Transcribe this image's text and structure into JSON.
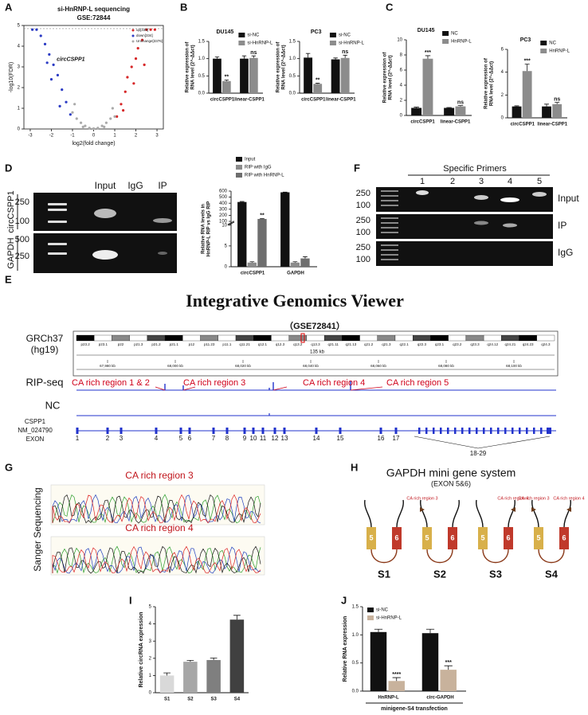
{
  "panel_labels": [
    "A",
    "B",
    "C",
    "D",
    "E",
    "F",
    "G",
    "H",
    "I",
    "J"
  ],
  "chart_data": [
    {
      "type": "scatter",
      "title": "si-HnRNP-L sequencing",
      "subtitle": "GSE:72844",
      "x_label": "log2(fold change)",
      "y_label": "-log10(FDR)",
      "xlim": [
        -3.3,
        3.3
      ],
      "ylim": [
        0,
        5
      ],
      "xticks": [
        -3,
        -2,
        -1,
        0,
        1,
        2,
        3
      ],
      "yticks": [
        0,
        1,
        2,
        3,
        4,
        5
      ],
      "legend": "top-right",
      "annotation": "circCSPP1",
      "series": [
        {
          "name": "up[339]",
          "color": "#d62728",
          "x": [
            1.1,
            1.3,
            1.5,
            1.6,
            1.8,
            2.0,
            2.1,
            2.3,
            2.5,
            2.7,
            2.9,
            1.9,
            2.4,
            1.4
          ],
          "y": [
            0.6,
            1.2,
            1.8,
            2.5,
            3.0,
            3.4,
            3.9,
            4.3,
            4.8,
            4.8,
            4.8,
            2.2,
            3.1,
            0.9
          ]
        },
        {
          "name": "down[334]",
          "color": "#2b3bc4",
          "x": [
            -1.1,
            -1.3,
            -1.5,
            -1.7,
            -1.9,
            -2.1,
            -2.3,
            -2.5,
            -2.7,
            -2.9,
            -1.6,
            -2.0,
            -2.2
          ],
          "y": [
            0.7,
            1.3,
            1.9,
            2.6,
            3.1,
            3.6,
            4.1,
            4.5,
            4.8,
            4.8,
            1.1,
            2.4,
            3.2
          ]
        },
        {
          "name": "Unchange[3376]",
          "color": "#aaaaaa",
          "x": [
            -1.0,
            -0.8,
            -0.6,
            -0.4,
            -0.2,
            0,
            0.2,
            0.4,
            0.6,
            0.8,
            1.0,
            -0.5,
            0.5,
            -0.9,
            0.9
          ],
          "y": [
            0.8,
            0.5,
            0.3,
            0.15,
            0.05,
            0.02,
            0.05,
            0.15,
            0.3,
            0.5,
            0.6,
            0.1,
            0.1,
            1.2,
            1.0
          ]
        }
      ]
    },
    {
      "type": "bar",
      "title": "DU145",
      "y_label": [
        "Relative expression of",
        "RNA level (2^-ΔΔct)"
      ],
      "categories": [
        "circCSPP1",
        "linear-CSPP1"
      ],
      "ylim": [
        0,
        1.5
      ],
      "yticks": [
        {
          "value": 0,
          "label": "0.0"
        },
        {
          "value": 0.5,
          "label": "0.5"
        },
        {
          "value": 1,
          "label": "1.0"
        },
        {
          "value": 1.5,
          "label": "1.5"
        }
      ],
      "legend": "top-right",
      "series": [
        {
          "name": "si-NC",
          "color": "#111111",
          "values": [
            1.0,
            1.0
          ],
          "errors": [
            0.05,
            0.08
          ]
        },
        {
          "name": "si-HnRNP-L",
          "color": "#8c8c8c",
          "values": [
            0.35,
            1.02
          ],
          "errors": [
            0.03,
            0.06
          ],
          "significance": [
            "**",
            "ns"
          ]
        }
      ]
    },
    {
      "type": "bar",
      "title": "PC3",
      "y_label": [
        "Relative expression of",
        "RNA level (2^-ΔΔct)"
      ],
      "categories": [
        "circCSPP1",
        "linear-CSPP1"
      ],
      "ylim": [
        0,
        1.5
      ],
      "yticks": [
        {
          "value": 0,
          "label": "0.0"
        },
        {
          "value": 0.5,
          "label": "0.5"
        },
        {
          "value": 1,
          "label": "1.0"
        },
        {
          "value": 1.5,
          "label": "1.5"
        }
      ],
      "legend": "top-right",
      "series": [
        {
          "name": "si-NC",
          "color": "#111111",
          "values": [
            1.03,
            0.98
          ],
          "errors": [
            0.12,
            0.04
          ]
        },
        {
          "name": "si-HnRNP-L",
          "color": "#8c8c8c",
          "values": [
            0.27,
            1.02
          ],
          "errors": [
            0.02,
            0.08
          ],
          "significance": [
            "**",
            "ns"
          ]
        }
      ]
    },
    {
      "type": "bar",
      "title": "DU145",
      "y_label": [
        "Relative expression of",
        "RNA level (2^-ΔΔct)"
      ],
      "categories": [
        "circCSPP1",
        "linear-CSPP1"
      ],
      "ylim": [
        0,
        10
      ],
      "yticks": [
        0,
        2,
        4,
        6,
        8,
        10
      ],
      "legend": "top-right",
      "series": [
        {
          "name": "NC",
          "color": "#111111",
          "values": [
            1.0,
            1.0
          ],
          "errors": [
            0.1,
            0.05
          ]
        },
        {
          "name": "HnRNP-L",
          "color": "#8c8c8c",
          "values": [
            7.5,
            1.2
          ],
          "errors": [
            0.4,
            0.1
          ],
          "significance": [
            "***",
            "ns"
          ]
        }
      ]
    },
    {
      "type": "bar",
      "title": "PC3",
      "y_label": [
        "Relative expression of",
        "RNA level (2^-ΔΔct)"
      ],
      "categories": [
        "circCSPP1",
        "linear-CSPP1"
      ],
      "ylim": [
        0,
        6
      ],
      "yticks": [
        0,
        2,
        4,
        6
      ],
      "legend": "top-right",
      "series": [
        {
          "name": "NC",
          "color": "#111111",
          "values": [
            1.0,
            1.0
          ],
          "errors": [
            0.05,
            0.2
          ]
        },
        {
          "name": "HnRNP-L",
          "color": "#8c8c8c",
          "values": [
            4.1,
            1.2
          ],
          "errors": [
            0.6,
            0.15
          ],
          "significance": [
            "***",
            "ns"
          ]
        }
      ]
    },
    {
      "type": "bar",
      "y_label": [
        "Relative RNA levels in",
        "HnRNP-L RIP vs IgG RIP"
      ],
      "categories": [
        "circCSPP1",
        "GAPDH"
      ],
      "ylim": [
        0,
        600
      ],
      "ybreak": [
        10,
        100
      ],
      "yticks": [
        0,
        5,
        10,
        100,
        200,
        300,
        400,
        500,
        600
      ],
      "legend": "top",
      "series": [
        {
          "name": "Input",
          "color": "#111111",
          "values": [
            420,
            580
          ],
          "errors": [
            8,
            4
          ]
        },
        {
          "name": "RIP with IgG",
          "color": "#8c8c8c",
          "values": [
            1,
            1
          ],
          "errors": [
            0.2,
            0.2
          ]
        },
        {
          "name": "RIP with HnRNP-L",
          "color": "#6e6e6e",
          "values": [
            140,
            2
          ],
          "errors": [
            6,
            0.4
          ],
          "significance": [
            "**",
            null
          ]
        }
      ]
    },
    {
      "type": "bar",
      "y_label": "Relative circRNA expression",
      "categories": [
        "S1",
        "S2",
        "S3",
        "S4"
      ],
      "ylim": [
        0,
        5
      ],
      "yticks": [
        0,
        1,
        2,
        3,
        4,
        5
      ],
      "values": [
        1.0,
        1.8,
        1.9,
        4.25
      ],
      "errors": [
        0.15,
        0.08,
        0.12,
        0.25
      ],
      "colors": [
        "#d9d9d9",
        "#a6a6a6",
        "#7f7f7f",
        "#404040"
      ]
    },
    {
      "type": "bar",
      "y_label": "Relative RNA expression",
      "x_label": "minigene-S4 transfection",
      "categories": [
        "HnRNP-L",
        "circ-GAPDH"
      ],
      "ylim": [
        0,
        1.5
      ],
      "yticks": [
        {
          "value": 0,
          "label": "0.0"
        },
        {
          "value": 0.5,
          "label": "0.5"
        },
        {
          "value": 1,
          "label": "1.0"
        },
        {
          "value": 1.5,
          "label": "1.5"
        }
      ],
      "legend": "top-left",
      "series": [
        {
          "name": "si-NC",
          "color": "#111111",
          "values": [
            1.05,
            1.03
          ],
          "errors": [
            0.05,
            0.07
          ]
        },
        {
          "name": "si-HnRNP-L",
          "color": "#c8b29c",
          "values": [
            0.18,
            0.38
          ],
          "errors": [
            0.06,
            0.07
          ],
          "significance": [
            "****",
            "***"
          ]
        }
      ]
    }
  ],
  "gel_d": {
    "lanes": [
      "Input",
      "IgG",
      "IP"
    ],
    "genes": [
      "circCSPP1",
      "GAPDH"
    ],
    "markers": [
      [
        "250",
        "100"
      ],
      [
        "500",
        "250"
      ]
    ]
  },
  "gel_f": {
    "title": "Specific Primers",
    "lanes": [
      "1",
      "2",
      "3",
      "4",
      "5"
    ],
    "rows": [
      "Input",
      "IP",
      "IgG"
    ],
    "markers": [
      "250",
      "100"
    ]
  },
  "genome": {
    "title": "Integrative Genomics Viewer",
    "dataset": "（GSE72841）",
    "assembly": [
      "GRCh37",
      "(hg19)"
    ],
    "bands": [
      "p23.2",
      "p23.1",
      "p22",
      "p21.3",
      "p21.2",
      "p21.1",
      "p12",
      "p11.23",
      "p11.1",
      "q11.21",
      "q12.1",
      "q12.3",
      "q13.2",
      "q13.3",
      "q21.11",
      "q21.13",
      "q21.2",
      "q21.3",
      "q22.1",
      "q22.3",
      "q23.1",
      "q23.2",
      "q23.3",
      "q24.12",
      "q24.21",
      "q24.23",
      "q24.3"
    ],
    "span": "135 kb",
    "coordinates": [
      "67,980 kb",
      "68,000 kb",
      "68,020 kb",
      "68,040 kb",
      "68,060 kb",
      "68,080 kb",
      "68,100 kb"
    ],
    "tracks": [
      "RIP-seq",
      "NC"
    ],
    "regions": [
      "CA rich region 1 & 2",
      "CA rich region 3",
      "CA rich region 4",
      "CA rich region 5"
    ],
    "gene": [
      "CSPP1",
      "NM_024790",
      "EXON"
    ],
    "exons": [
      "1",
      "2",
      "3",
      "4",
      "5",
      "6",
      "7",
      "8",
      "9",
      "10",
      "11",
      "12",
      "13",
      "14",
      "15",
      "16",
      "17",
      "18-29"
    ]
  },
  "sanger": {
    "label": "Sanger Sequencing",
    "traces": [
      "CA rich region 3",
      "CA rich region 4"
    ]
  },
  "minigene": {
    "title": "GAPDH mini gene system",
    "subtitle": "(EXON 5&6)",
    "exons": [
      "5",
      "6"
    ],
    "constructs": [
      {
        "name": "S1",
        "regions": {}
      },
      {
        "name": "S2",
        "regions": {
          "left": "CA rich region 3"
        }
      },
      {
        "name": "S3",
        "regions": {
          "right": "CA rich region 4"
        }
      },
      {
        "name": "S4",
        "regions": {
          "left": "CA rich region 3",
          "right": "CA rich region 4"
        }
      }
    ]
  }
}
